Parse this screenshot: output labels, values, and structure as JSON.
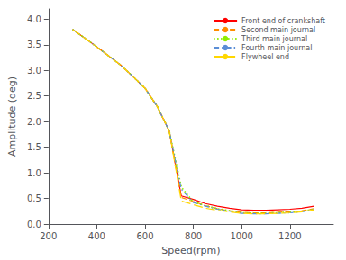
{
  "chart_data": {
    "type": "line",
    "xlabel": "Speed(rpm)",
    "ylabel": "Amplitude (deg)",
    "xlim": [
      200,
      1380
    ],
    "ylim": [
      0,
      4.2
    ],
    "xticks": [
      200,
      400,
      600,
      800,
      1000,
      1200
    ],
    "yticks": [
      {
        "value": 0.0,
        "label": "0.0"
      },
      {
        "value": 0.5,
        "label": "0.5"
      },
      {
        "value": 1.0,
        "label": "1.0"
      },
      {
        "value": 1.5,
        "label": "1.5"
      },
      {
        "value": 2.0,
        "label": "2.0"
      },
      {
        "value": 2.5,
        "label": "2.5"
      },
      {
        "value": 3.0,
        "label": "3.0"
      },
      {
        "value": 3.5,
        "label": "3.5"
      },
      {
        "value": 4.0,
        "label": "4.0"
      }
    ],
    "grid": false,
    "legend": "upper right",
    "x": [
      300,
      380,
      450,
      500,
      550,
      600,
      650,
      700,
      750,
      800,
      850,
      900,
      950,
      1000,
      1050,
      1100,
      1150,
      1200,
      1250,
      1300
    ],
    "series": [
      {
        "name": "Front end of crankshaft",
        "color": "#ff0000",
        "line_style": "solid",
        "values": [
          3.8,
          3.53,
          3.28,
          3.1,
          2.88,
          2.65,
          2.3,
          1.82,
          0.55,
          0.48,
          0.4,
          0.35,
          0.31,
          0.28,
          0.27,
          0.27,
          0.28,
          0.29,
          0.31,
          0.35
        ]
      },
      {
        "name": "Second main journal",
        "color": "#ff8c00",
        "line_style": "dashed",
        "values": [
          3.8,
          3.53,
          3.28,
          3.1,
          2.88,
          2.65,
          2.3,
          1.82,
          0.52,
          0.44,
          0.36,
          0.3,
          0.26,
          0.23,
          0.22,
          0.22,
          0.23,
          0.24,
          0.26,
          0.3
        ]
      },
      {
        "name": "Third main journal",
        "color": "#90ee00",
        "line_style": "dotted",
        "values": [
          3.8,
          3.53,
          3.28,
          3.1,
          2.88,
          2.65,
          2.3,
          1.82,
          0.72,
          0.43,
          0.36,
          0.3,
          0.26,
          0.22,
          0.21,
          0.21,
          0.22,
          0.23,
          0.25,
          0.29
        ]
      },
      {
        "name": "Fourth main journal",
        "color": "#5b8ed6",
        "line_style": "dashdot",
        "values": [
          3.8,
          3.53,
          3.28,
          3.1,
          2.88,
          2.65,
          2.3,
          1.82,
          0.68,
          0.42,
          0.35,
          0.29,
          0.25,
          0.21,
          0.2,
          0.2,
          0.21,
          0.22,
          0.24,
          0.28
        ]
      },
      {
        "name": "Flywheel end",
        "color": "#ffd700",
        "line_style": "long_dashed",
        "values": [
          3.8,
          3.53,
          3.28,
          3.1,
          2.88,
          2.65,
          2.3,
          1.82,
          0.45,
          0.38,
          0.31,
          0.27,
          0.24,
          0.21,
          0.2,
          0.2,
          0.21,
          0.22,
          0.24,
          0.28
        ]
      }
    ]
  }
}
